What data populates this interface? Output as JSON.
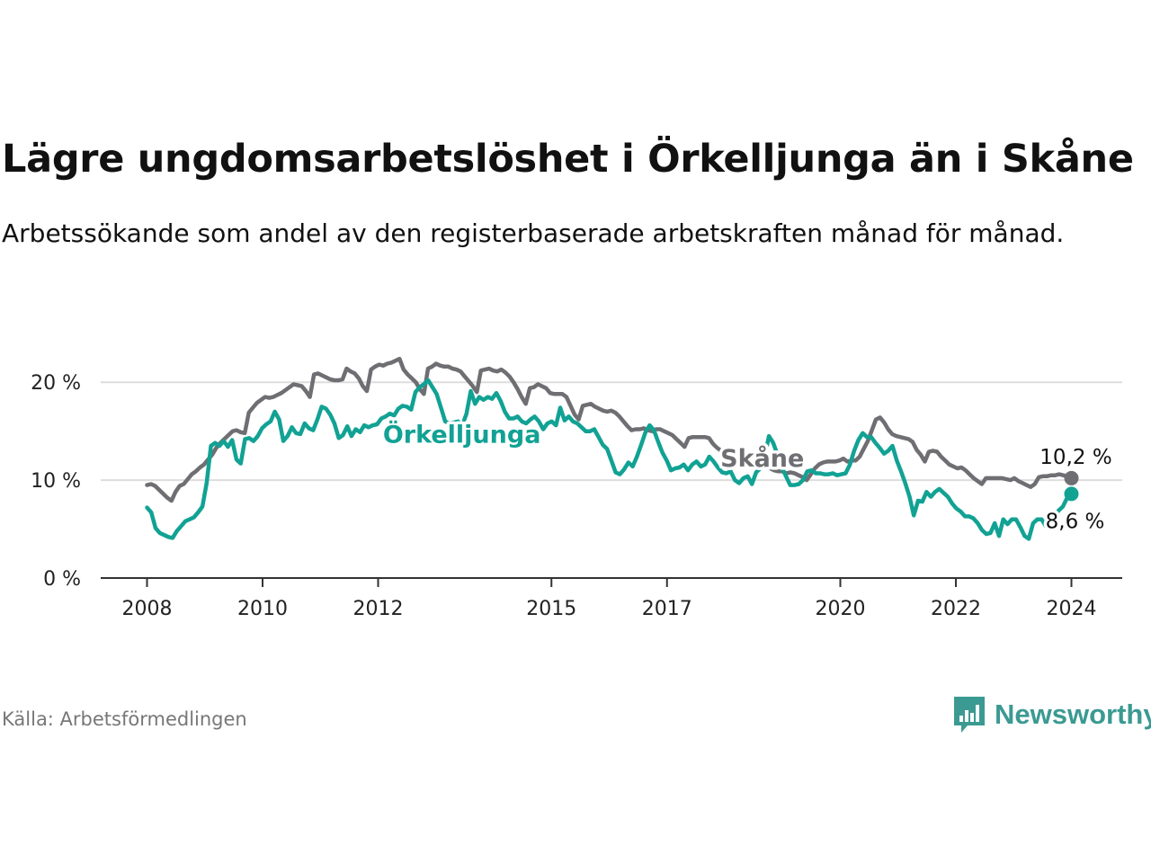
{
  "title": "Lägre ungdomsarbetslöshet i Örkelljunga än i Skåne",
  "subtitle": "Arbetssökande som andel av den registerbaserade arbetskraften månad för månad.",
  "source": "Källa: Arbetsförmedlingen",
  "brand": {
    "name": "Newsworthy",
    "icon": "newsworthy-logo-icon"
  },
  "colors": {
    "orkelljunga": "#11a294",
    "skane": "#6f6e73",
    "grid": "#dddddd",
    "axis": "#333333",
    "text": "#111111"
  },
  "chart_data": {
    "type": "line",
    "title": "Lägre ungdomsarbetslöshet i Örkelljunga än i Skåne",
    "xlabel": "",
    "ylabel": "",
    "x_start": "2008-01",
    "x_end": "2024-01",
    "xlim": [
      2008.0,
      2025.0
    ],
    "ylim": [
      0,
      22.5
    ],
    "y_ticks": [
      0,
      10,
      20
    ],
    "y_tick_labels": [
      "0 %",
      "10 %",
      "20 %"
    ],
    "x_ticks": [
      2008,
      2010,
      2012,
      2015,
      2017,
      2020,
      2022,
      2024
    ],
    "x_tick_labels": [
      "2008",
      "2010",
      "2012",
      "2015",
      "2017",
      "2020",
      "2022",
      "2024"
    ],
    "grid": true,
    "series": [
      {
        "name": "Skåne",
        "label": "Skåne",
        "color": "#6f6e73",
        "end_label": "10,2 %",
        "values": [
          9.5,
          9.6,
          9.4,
          9.0,
          8.6,
          8.2,
          7.9,
          8.8,
          9.4,
          9.6,
          10.1,
          10.6,
          10.9,
          11.3,
          11.6,
          12.1,
          12.6,
          13.3,
          13.8,
          14.2,
          14.6,
          15.0,
          15.1,
          14.9,
          14.8,
          16.9,
          17.4,
          17.9,
          18.2,
          18.5,
          18.4,
          18.5,
          18.7,
          18.9,
          19.2,
          19.5,
          19.8,
          19.7,
          19.6,
          19.1,
          18.5,
          20.8,
          20.9,
          20.7,
          20.5,
          20.3,
          20.2,
          20.2,
          20.3,
          21.4,
          21.1,
          20.9,
          20.4,
          19.6,
          19.1,
          21.3,
          21.6,
          21.8,
          21.7,
          21.9,
          22.0,
          22.2,
          22.4,
          21.3,
          20.8,
          20.4,
          20.0,
          19.3,
          18.8,
          21.4,
          21.6,
          21.9,
          21.7,
          21.6,
          21.6,
          21.4,
          21.3,
          21.1,
          20.6,
          20.1,
          19.6,
          19.0,
          21.2,
          21.3,
          21.4,
          21.2,
          21.1,
          21.3,
          21.0,
          20.6,
          20.0,
          19.3,
          18.5,
          17.8,
          19.4,
          19.5,
          19.8,
          19.6,
          19.4,
          18.9,
          18.8,
          18.8,
          18.8,
          18.5,
          17.6,
          16.7,
          16.2,
          17.6,
          17.7,
          17.8,
          17.5,
          17.3,
          17.1,
          17.0,
          17.1,
          16.9,
          16.5,
          16.0,
          15.5,
          15.1,
          15.2,
          15.2,
          15.3,
          15.1,
          15.0,
          15.2,
          15.2,
          15.0,
          14.8,
          14.6,
          14.2,
          13.8,
          13.4,
          14.3,
          14.4,
          14.4,
          14.4,
          14.4,
          14.3,
          13.7,
          13.3,
          13.0,
          12.7,
          12.5,
          12.5,
          12.7,
          12.3,
          12.0,
          11.6,
          11.5,
          11.5,
          11.6,
          11.4,
          11.2,
          11.0,
          10.9,
          10.9,
          10.7,
          10.8,
          10.7,
          10.5,
          10.3,
          10.0,
          10.6,
          11.2,
          11.6,
          11.8,
          11.9,
          11.9,
          11.9,
          12.0,
          12.2,
          11.9,
          12.0,
          12.0,
          12.4,
          13.2,
          14.0,
          15.1,
          16.2,
          16.4,
          15.9,
          15.2,
          14.7,
          14.5,
          14.4,
          14.3,
          14.2,
          13.9,
          13.1,
          12.6,
          11.9,
          12.9,
          13.0,
          12.9,
          12.4,
          12.0,
          11.6,
          11.4,
          11.2,
          11.3,
          11.0,
          10.6,
          10.2,
          9.9,
          9.6,
          10.2,
          10.2,
          10.2,
          10.2,
          10.2,
          10.1,
          10.0,
          10.2,
          9.9,
          9.7,
          9.5,
          9.3,
          9.6,
          10.3,
          10.4,
          10.4,
          10.5,
          10.5,
          10.6,
          10.5,
          10.4,
          10.2
        ]
      },
      {
        "name": "Örkelljunga",
        "label": "Örkelljunga",
        "color": "#11a294",
        "end_label": "8,6 %",
        "values": [
          7.2,
          6.7,
          5.1,
          4.6,
          4.4,
          4.2,
          4.1,
          4.8,
          5.3,
          5.8,
          6.0,
          6.2,
          6.7,
          7.3,
          9.7,
          13.5,
          13.8,
          13.5,
          14.0,
          13.4,
          14.1,
          12.1,
          11.7,
          14.2,
          14.3,
          14.0,
          14.5,
          15.3,
          15.7,
          16.0,
          17.0,
          16.2,
          14.0,
          14.5,
          15.4,
          14.8,
          14.7,
          15.8,
          15.3,
          15.1,
          16.2,
          17.5,
          17.3,
          16.7,
          15.8,
          14.3,
          14.6,
          15.5,
          14.5,
          15.2,
          14.9,
          15.6,
          15.4,
          15.6,
          15.7,
          16.3,
          16.5,
          16.8,
          16.6,
          17.3,
          17.6,
          17.5,
          17.2,
          19.0,
          19.5,
          19.8,
          20.2,
          19.5,
          18.8,
          17.4,
          16.0,
          15.8,
          15.9,
          16.0,
          15.6,
          16.8,
          19.1,
          17.8,
          18.5,
          18.2,
          18.5,
          18.3,
          18.9,
          18.1,
          17.0,
          16.3,
          16.3,
          16.5,
          16.0,
          15.8,
          16.2,
          16.5,
          16.0,
          15.2,
          15.8,
          16.0,
          15.6,
          17.4,
          16.1,
          16.5,
          16.0,
          15.8,
          15.4,
          15.0,
          15.0,
          15.2,
          14.4,
          13.6,
          13.2,
          12.0,
          10.8,
          10.6,
          11.1,
          11.8,
          11.4,
          12.4,
          13.6,
          14.9,
          15.6,
          15.1,
          13.9,
          12.8,
          12.0,
          11.0,
          11.2,
          11.3,
          11.6,
          11.0,
          11.6,
          11.9,
          11.4,
          11.6,
          12.4,
          11.9,
          11.3,
          10.8,
          10.7,
          10.9,
          10.0,
          9.7,
          10.2,
          10.4,
          9.6,
          10.8,
          11.2,
          12.4,
          14.5,
          13.8,
          12.6,
          11.3,
          10.4,
          9.5,
          9.5,
          9.6,
          10.0,
          10.9,
          11.0,
          10.7,
          10.7,
          10.6,
          10.6,
          10.7,
          10.5,
          10.6,
          10.7,
          11.6,
          13.0,
          14.1,
          14.8,
          14.4,
          14.4,
          13.8,
          13.3,
          12.7,
          13.0,
          13.5,
          12.0,
          10.9,
          9.7,
          8.3,
          6.4,
          7.9,
          7.8,
          8.8,
          8.3,
          8.8,
          9.1,
          8.7,
          8.3,
          7.6,
          7.1,
          6.8,
          6.3,
          6.3,
          6.1,
          5.6,
          4.9,
          4.5,
          4.6,
          5.6,
          4.3,
          6.0,
          5.5,
          6.0,
          6.0,
          5.2,
          4.3,
          4.0,
          5.6,
          6.0,
          6.0,
          5.3,
          5.6,
          6.3,
          6.9,
          7.3,
          8.2,
          8.6
        ]
      }
    ]
  }
}
